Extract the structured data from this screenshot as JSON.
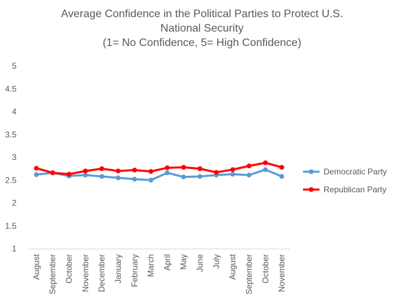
{
  "chart_data": {
    "type": "line",
    "title_lines": [
      "Average Confidence in the Political Parties to Protect U.S.",
      "National Security",
      "(1= No Confidence, 5= High Confidence)"
    ],
    "categories": [
      "August",
      "September",
      "October",
      "November",
      "December",
      "January",
      "February",
      "March",
      "April",
      "May",
      "June",
      "July",
      "August",
      "September",
      "October",
      "November"
    ],
    "ylim": [
      1,
      5
    ],
    "yticks": [
      "1",
      "1.5",
      "2",
      "2.5",
      "3",
      "3.5",
      "4",
      "4.5",
      "5"
    ],
    "grid": false,
    "legend_position": "right",
    "series": [
      {
        "name": "Democratic Party",
        "color": "#5b9bd5",
        "values": [
          2.62,
          2.66,
          2.59,
          2.61,
          2.58,
          2.55,
          2.52,
          2.5,
          2.66,
          2.57,
          2.58,
          2.61,
          2.63,
          2.61,
          2.73,
          2.58
        ]
      },
      {
        "name": "Republican Party",
        "color": "#ff0000",
        "values": [
          2.76,
          2.66,
          2.63,
          2.7,
          2.75,
          2.7,
          2.72,
          2.69,
          2.77,
          2.78,
          2.75,
          2.67,
          2.73,
          2.81,
          2.88,
          2.78
        ]
      }
    ]
  }
}
